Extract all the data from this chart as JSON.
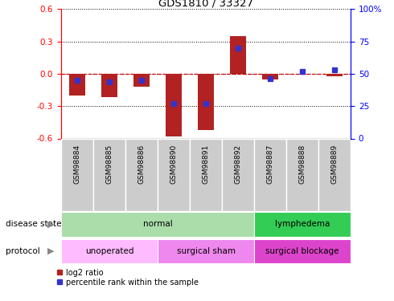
{
  "title": "GDS1810 / 33327",
  "samples": [
    "GSM98884",
    "GSM98885",
    "GSM98886",
    "GSM98890",
    "GSM98891",
    "GSM98892",
    "GSM98887",
    "GSM98888",
    "GSM98889"
  ],
  "log2_ratio": [
    -0.2,
    -0.22,
    -0.12,
    -0.58,
    -0.52,
    0.35,
    -0.05,
    0.0,
    -0.02
  ],
  "percentile_rank": [
    45,
    44,
    45,
    27,
    27,
    70,
    46,
    52,
    53
  ],
  "ylim_left": [
    -0.6,
    0.6
  ],
  "ylim_right": [
    0,
    100
  ],
  "yticks_left": [
    -0.6,
    -0.3,
    0.0,
    0.3,
    0.6
  ],
  "yticks_right": [
    0,
    25,
    50,
    75,
    100
  ],
  "bar_color": "#b22222",
  "dot_color": "#3333cc",
  "zero_line_color": "#cc0000",
  "grid_color": "#000000",
  "disease_state_groups": [
    {
      "label": "normal",
      "start": 0,
      "end": 6,
      "color": "#aaddaa"
    },
    {
      "label": "lymphedema",
      "start": 6,
      "end": 9,
      "color": "#33cc55"
    }
  ],
  "protocol_groups": [
    {
      "label": "unoperated",
      "start": 0,
      "end": 3,
      "color": "#ffbbff"
    },
    {
      "label": "surgical sham",
      "start": 3,
      "end": 6,
      "color": "#ee88ee"
    },
    {
      "label": "surgical blockage",
      "start": 6,
      "end": 9,
      "color": "#dd44cc"
    }
  ],
  "sample_bg_color": "#cccccc",
  "legend_log2_color": "#b22222",
  "legend_pct_color": "#3333cc",
  "label_disease_state": "disease state",
  "label_protocol": "protocol",
  "bg_color": "#ffffff"
}
